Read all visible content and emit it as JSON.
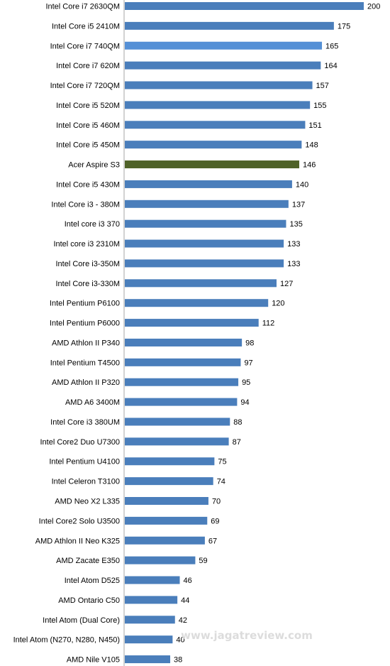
{
  "chart_data": {
    "type": "bar",
    "orientation": "horizontal",
    "title": "",
    "xlabel": "",
    "ylabel": "",
    "xlim": [
      0,
      200
    ],
    "grid": false,
    "legend": "none",
    "colors": {
      "default_bar": "#4a7ebb",
      "highlight_light": "#5590d6",
      "highlight_dark": "#4f6228"
    },
    "categories": [
      "Intel Core i7 2630QM",
      "Intel Core i5 2410M",
      "Intel Core i7 740QM",
      "Intel Core i7 620M",
      "Intel Core i7 720QM",
      "Intel Core i5 520M",
      "Intel Core i5 460M",
      "Intel Core i5 450M",
      "Acer Aspire S3",
      "Intel Core i5 430M",
      "Intel Core i3 - 380M",
      "Intel core i3 370",
      "Intel core i3 2310M",
      "Intel Core i3-350M",
      "Intel Core i3-330M",
      "Intel Pentium P6100",
      "Intel Pentium P6000",
      "AMD Athlon II P340",
      "Intel Pentium T4500",
      "AMD Athlon II P320",
      "AMD A6 3400M",
      "Intel Core i3 380UM",
      "Intel Core2 Duo U7300",
      "Intel Pentium U4100",
      "Intel Celeron T3100",
      "AMD Neo X2 L335",
      "Intel Core2 Solo U3500",
      "AMD Athlon II Neo K325",
      "AMD Zacate E350",
      "Intel Atom D525",
      "AMD Ontario C50",
      "Intel Atom (Dual Core)",
      "Intel Atom (N270, N280, N450)",
      "AMD Nile V105"
    ],
    "values": [
      200,
      175,
      165,
      164,
      157,
      155,
      151,
      148,
      146,
      140,
      137,
      135,
      133,
      133,
      127,
      120,
      112,
      98,
      97,
      95,
      94,
      88,
      87,
      75,
      74,
      70,
      69,
      67,
      59,
      46,
      44,
      42,
      40,
      38
    ],
    "highlights": {
      "Intel Core i7 740QM": "highlight_light",
      "Acer Aspire S3": "highlight_dark"
    }
  },
  "watermark": "www.jagatreview.com"
}
